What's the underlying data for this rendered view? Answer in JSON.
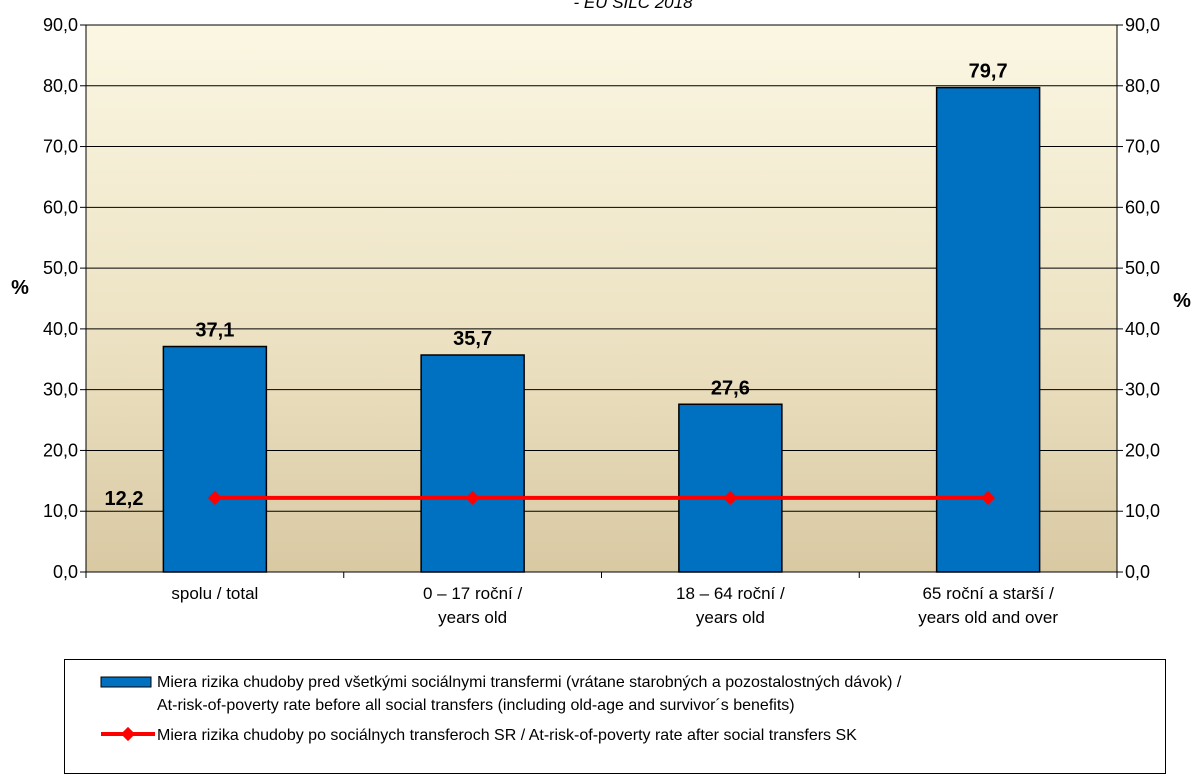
{
  "subtitle": "- EU SILC 2018",
  "y_unit_left": "%",
  "y_unit_right": "%",
  "colors": {
    "bar": "#0070c0",
    "bar_stroke": "#000000",
    "line": "#ff0000"
  },
  "legend": {
    "bar_label_line1": "Miera rizika chudoby pred všetkými sociálnymi transfermi (vrátane starobných a pozostalostných dávok) /",
    "bar_label_line2": "At-risk-of-poverty rate before all social transfers (including old-age and survivor´s benefits)",
    "line_label": "Miera rizika chudoby po sociálnych transferoch SR / At-risk-of-poverty rate after social transfers SK"
  },
  "chart_data": {
    "type": "bar",
    "categories": [
      [
        "spolu / total"
      ],
      [
        "0 – 17 roční /",
        "years old"
      ],
      [
        "18 – 64  roční /",
        "years old"
      ],
      [
        "65 roční a starší /",
        "years old and over"
      ]
    ],
    "series": [
      {
        "kind": "bar",
        "values": [
          37.1,
          35.7,
          27.6,
          79.7
        ],
        "labels": [
          "37,1",
          "35,7",
          "27,6",
          "79,7"
        ]
      },
      {
        "kind": "line",
        "values": [
          12.2,
          12.2,
          12.2,
          12.2
        ],
        "label": "12,2"
      }
    ],
    "ylim": [
      0,
      90
    ],
    "yticks": [
      "0,0",
      "10,0",
      "20,0",
      "30,0",
      "40,0",
      "50,0",
      "60,0",
      "70,0",
      "80,0",
      "90,0"
    ],
    "legend_position": "bottom",
    "grid": true
  }
}
